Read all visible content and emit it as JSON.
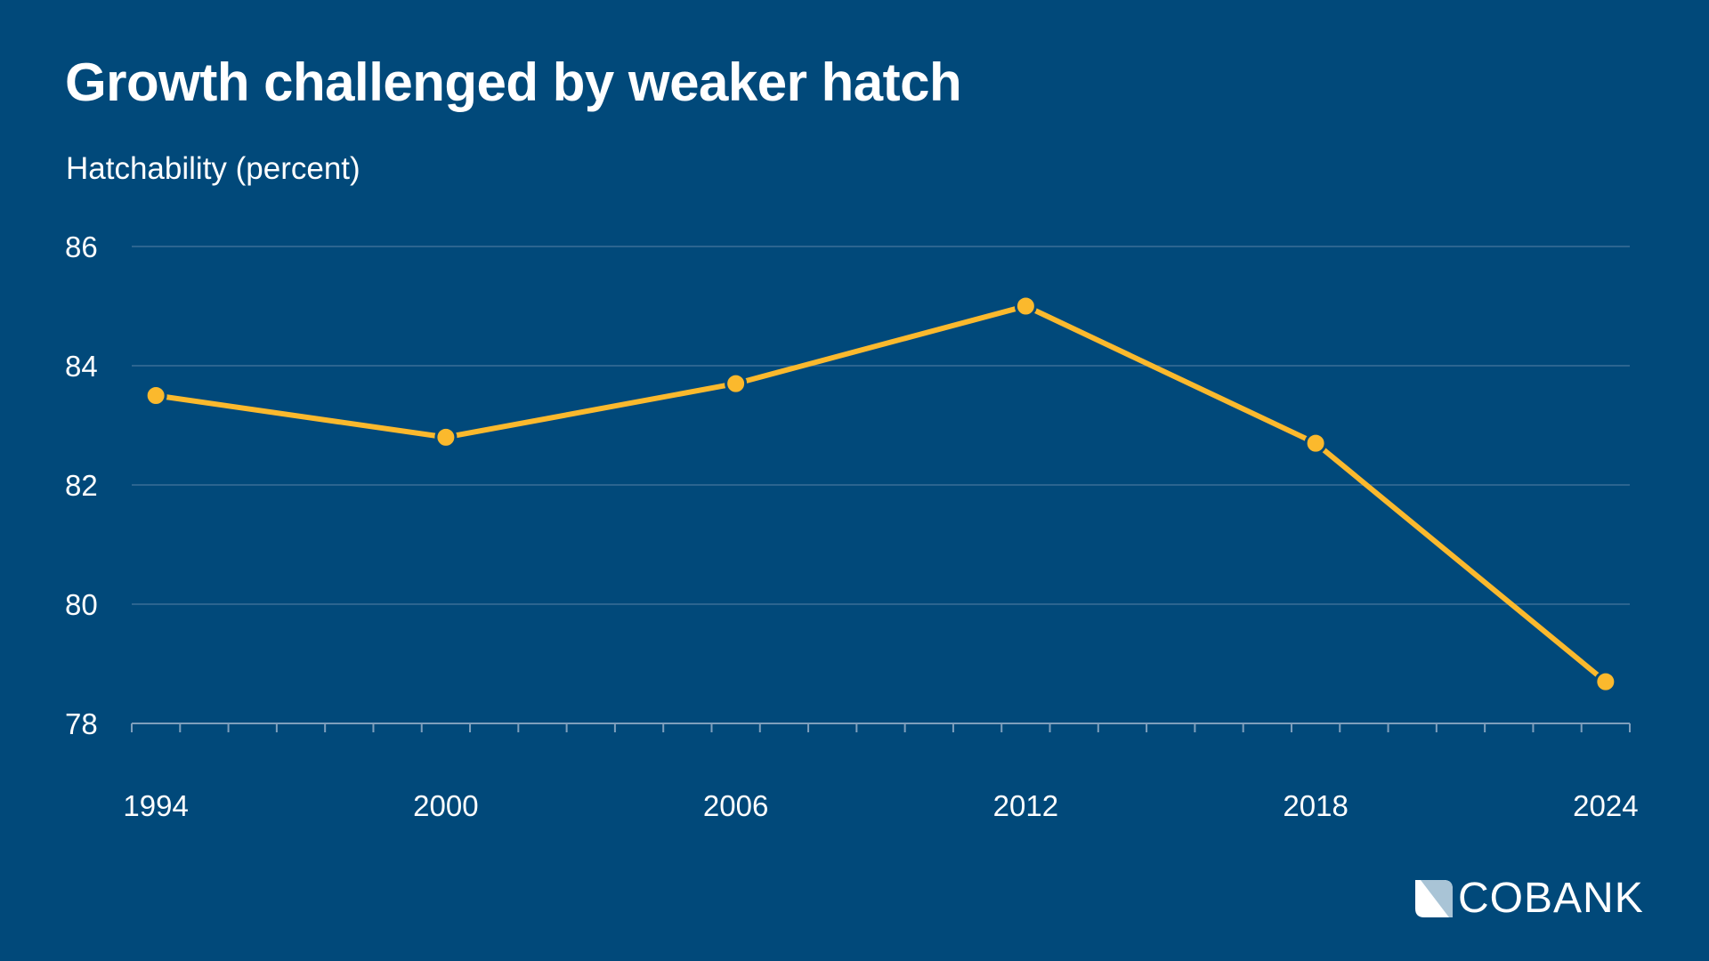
{
  "colors": {
    "background": "#01497a",
    "line": "#fbb92d",
    "grid": "#3a6f98",
    "logo_accent": "#a9c4d6"
  },
  "chart_data": {
    "type": "line",
    "title": "Growth challenged by weaker hatch",
    "ylabel": "Hatchability (percent)",
    "xlabel": "",
    "x": [
      1994,
      2000,
      2006,
      2012,
      2018,
      2024
    ],
    "values": [
      83.5,
      82.8,
      83.7,
      85.0,
      82.7,
      78.7
    ],
    "ylim": [
      78,
      86
    ],
    "yticks": [
      "78",
      "80",
      "82",
      "84",
      "86"
    ],
    "xticks": [
      "1994",
      "2000",
      "2006",
      "2012",
      "2018",
      "2024"
    ],
    "xlim": [
      1994,
      2024
    ],
    "grid": true,
    "markers": true
  },
  "logo": {
    "text": "COBANK"
  }
}
